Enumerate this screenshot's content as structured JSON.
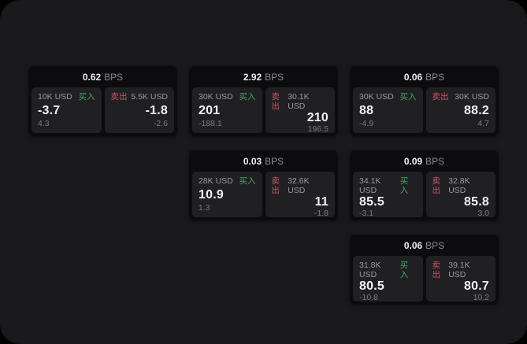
{
  "labels": {
    "bps_unit": "BPS",
    "buy": "买入",
    "sell": "卖出"
  },
  "colors": {
    "page_bg": "#000000",
    "surface_bg": "#19191b",
    "card_bg": "#0c0c0e",
    "panel_bg": "#202023",
    "buy_green": "#3fa567",
    "sell_red": "#cc5266",
    "text_primary": "#f2f2f3",
    "text_muted": "#98989b"
  },
  "cards": [
    {
      "bps": "0.62",
      "buy": {
        "amount": "10K USD",
        "price": "-3.7",
        "delta": "4.3"
      },
      "sell": {
        "amount": "5.5K USD",
        "price": "-1.8",
        "delta": "-2.6"
      }
    },
    {
      "bps": "2.92",
      "buy": {
        "amount": "30K USD",
        "price": "201",
        "delta": "-188.1"
      },
      "sell": {
        "amount": "30.1K USD",
        "price": "210",
        "delta": "196.5"
      }
    },
    {
      "bps": "0.06",
      "buy": {
        "amount": "30K USD",
        "price": "88",
        "delta": "-4.9"
      },
      "sell": {
        "amount": "30K USD",
        "price": "88.2",
        "delta": "4.7"
      }
    },
    {
      "bps": "0.03",
      "buy": {
        "amount": "28K USD",
        "price": "10.9",
        "delta": "1.3"
      },
      "sell": {
        "amount": "32.6K USD",
        "price": "11",
        "delta": "-1.8"
      }
    },
    {
      "bps": "0.09",
      "buy": {
        "amount": "34.1K USD",
        "price": "85.5",
        "delta": "-3.1"
      },
      "sell": {
        "amount": "32.8K USD",
        "price": "85.8",
        "delta": "3.0"
      }
    },
    {
      "bps": "0.06",
      "buy": {
        "amount": "31.8K USD",
        "price": "80.5",
        "delta": "-10.8"
      },
      "sell": {
        "amount": "39.1K USD",
        "price": "80.7",
        "delta": "10.2"
      }
    }
  ]
}
